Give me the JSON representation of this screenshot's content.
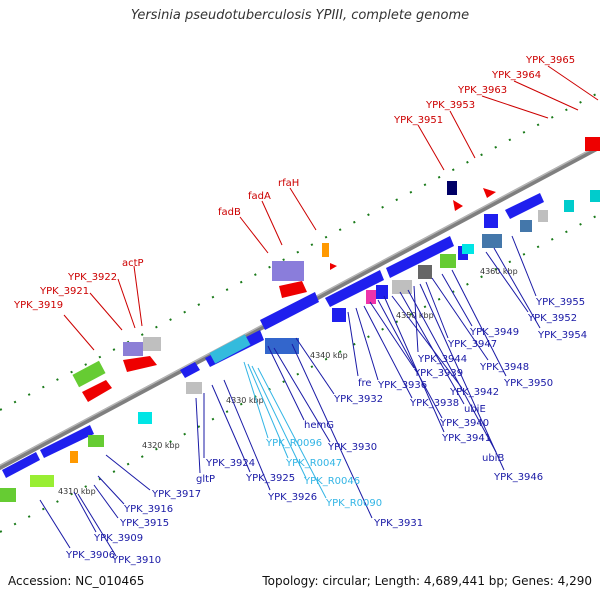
{
  "title": "Yersinia pseudotuberculosis YPIII, complete genome",
  "footer": {
    "accession": "Accession: NC_010465",
    "summary": "Topology: circular; Length: 4,689,441 bp; Genes: 4,290"
  },
  "colors": {
    "backbone": "#808080",
    "red_label": "#cc0000",
    "blue_label": "#1a1aa6",
    "cyan_label": "#33b5e5",
    "tick": "#1a7a1a"
  },
  "kbp_ticks": [
    "4310 kbp",
    "4320 kbp",
    "4330 kbp",
    "4340 kbp",
    "4350 kbp",
    "4360 kbp"
  ],
  "upper_labels": [
    "YPK_3919",
    "YPK_3921",
    "YPK_3922",
    "actP",
    "fadB",
    "fadA",
    "rfaH",
    "YPK_3951",
    "YPK_3953",
    "YPK_3963",
    "YPK_3964",
    "YPK_3965"
  ],
  "lower_labels": [
    "YPK_3906",
    "YPK_3909",
    "YPK_3910",
    "YPK_3915",
    "YPK_3916",
    "YPK_3917",
    "gltP",
    "YPK_3924",
    "YPK_3925",
    "YPK_3926",
    "hemG",
    "YPK_3930",
    "YPK_3931",
    "YPK_3932",
    "fre",
    "YPK_3936",
    "YPK_3938",
    "YPK_3939",
    "YPK_3940",
    "YPK_3941",
    "YPK_3942",
    "ubiE",
    "ubiB",
    "YPK_3944",
    "YPK_3946",
    "YPK_3947",
    "YPK_3948",
    "YPK_3949",
    "YPK_3950",
    "YPK_3952",
    "YPK_3954",
    "YPK_3955"
  ],
  "rna_labels": [
    "YPK_R0096",
    "YPK_R0047",
    "YPK_R0046",
    "YPK_R0090"
  ]
}
